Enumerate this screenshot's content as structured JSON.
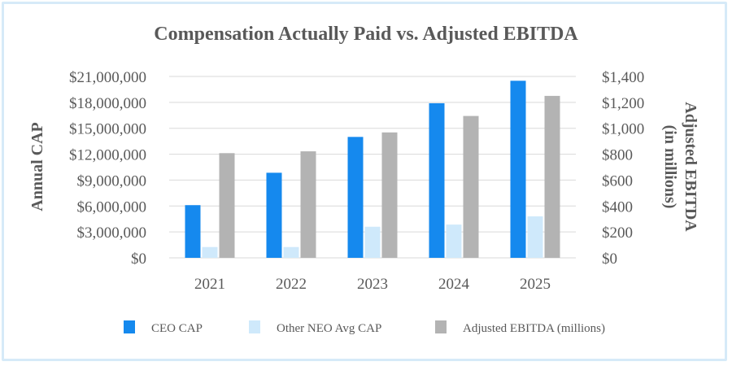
{
  "chart_data": {
    "type": "bar",
    "title": "Compensation Actually Paid vs. Adjusted EBITDA",
    "categories": [
      "2021",
      "2022",
      "2023",
      "2024",
      "2025"
    ],
    "ylabel": "Annual CAP",
    "ylabel_right": "Adjusted EBITDA (in millions)",
    "ylim": [
      0,
      21000000
    ],
    "ylim_right": [
      0,
      1400
    ],
    "yticks": [
      "$0",
      "$3,000,000",
      "$6,000,000",
      "$9,000,000",
      "$12,000,000",
      "$15,000,000",
      "$18,000,000",
      "$21,000,000"
    ],
    "yticks_right": [
      "$0",
      "$200",
      "$400",
      "$600",
      "$800",
      "$1,000",
      "$1,200",
      "$1,400"
    ],
    "grid": true,
    "legend_position": "bottom",
    "series": [
      {
        "name": "CEO CAP",
        "axis": "left",
        "color": "#1589ee",
        "values": [
          6100000,
          9850000,
          14000000,
          17900000,
          20500000
        ]
      },
      {
        "name": "Other NEO Avg CAP",
        "axis": "left",
        "color": "#cfe9fb",
        "values": [
          1250000,
          1250000,
          3600000,
          3850000,
          4800000
        ]
      },
      {
        "name": "Adjusted EBITDA (millions)",
        "axis": "right",
        "color": "#b3b3b3",
        "values": [
          808,
          822,
          968,
          1095,
          1250
        ]
      }
    ]
  }
}
